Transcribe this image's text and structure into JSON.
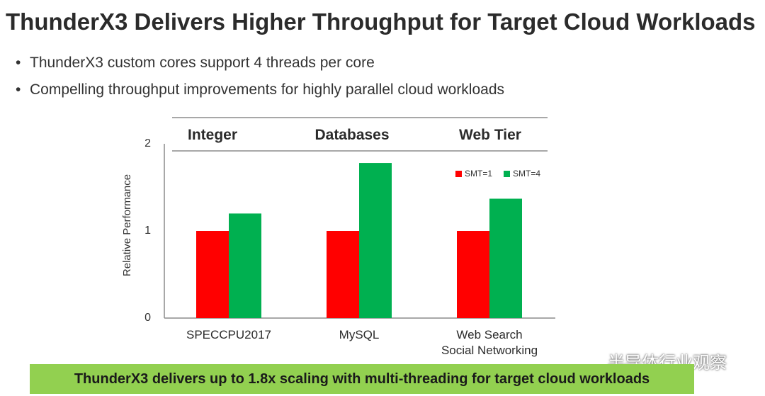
{
  "slide": {
    "title": "ThunderX3 Delivers Higher Throughput for Target Cloud Workloads",
    "bullets": [
      "ThunderX3 custom cores support 4 threads per core",
      "Compelling throughput improvements for highly parallel cloud workloads"
    ],
    "bullet_glyph": "•",
    "banner": "ThunderX3 delivers up to 1.8x scaling with multi-threading for target cloud workloads",
    "watermark": "半导体行业观察"
  },
  "colors": {
    "smt1": "#ff0000",
    "smt4": "#00b050",
    "banner": "#92d050"
  },
  "chart_data": {
    "type": "bar",
    "ylabel": "Relative Performance",
    "ylim": [
      0,
      2
    ],
    "yticks": [
      "0",
      "1",
      "2"
    ],
    "groups": [
      "Integer",
      "Databases",
      "Web Tier"
    ],
    "categories": [
      "SPECCPU2017",
      "MySQL",
      "Web Search\nSocial Networking"
    ],
    "series": [
      {
        "name": "SMT=1",
        "values": [
          1.0,
          1.0,
          1.0
        ]
      },
      {
        "name": "SMT=4",
        "values": [
          1.2,
          1.78,
          1.37
        ]
      }
    ],
    "legend": "top-right",
    "grid": false
  }
}
